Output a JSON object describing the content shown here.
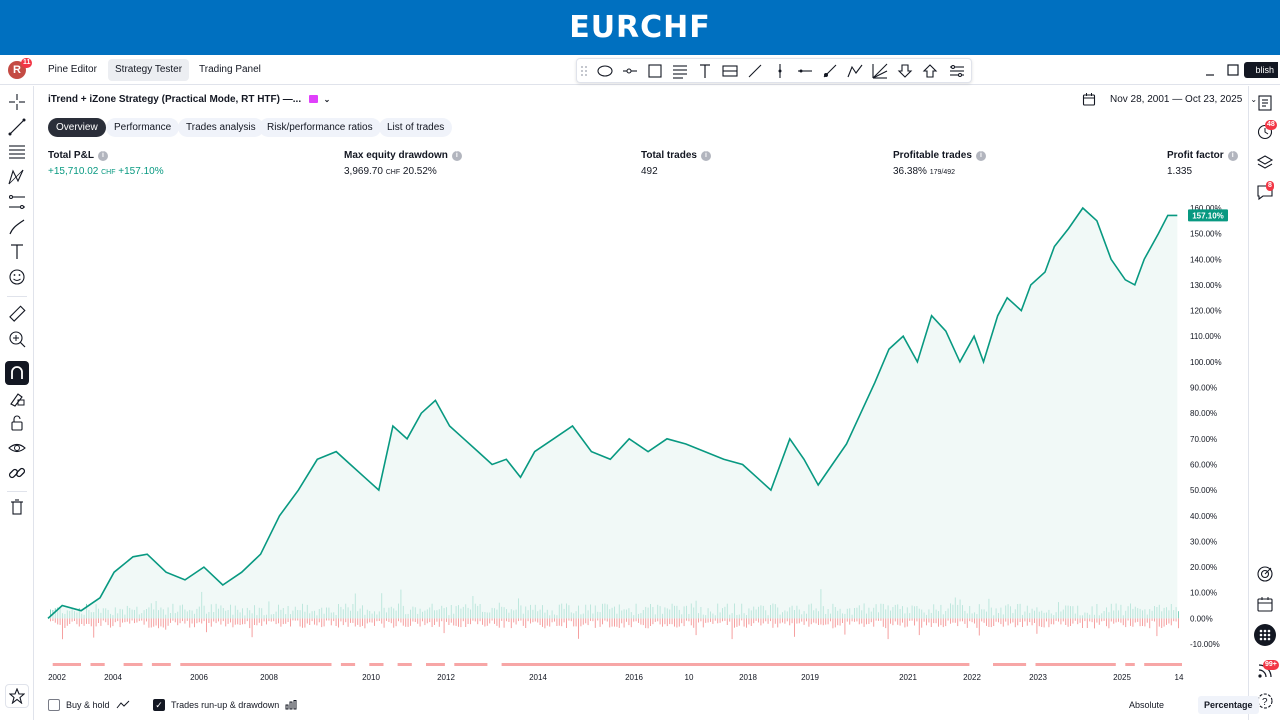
{
  "banner": {
    "title": "EURCHF"
  },
  "topbar": {
    "avatar_letter": "R",
    "avatar_badge": "11",
    "tabs": [
      {
        "label": "Pine Editor"
      },
      {
        "label": "Strategy Tester"
      },
      {
        "label": "Trading Panel"
      }
    ],
    "active_tab": "Strategy Tester",
    "publish_label": "blish"
  },
  "strategy": {
    "title": "iTrend + iZone Strategy (Practical Mode, RT HTF) —...",
    "date_range": "Nov 28, 2001 — Oct 23, 2025"
  },
  "filter_tabs": [
    {
      "label": "Overview"
    },
    {
      "label": "Performance"
    },
    {
      "label": "Trades analysis"
    },
    {
      "label": "Risk/performance ratios"
    },
    {
      "label": "List of trades"
    }
  ],
  "metrics": {
    "total_pnl": {
      "label": "Total P&L",
      "value": "+15,710.02",
      "unit": "CHF",
      "pct": "+157.10%"
    },
    "max_drawdown": {
      "label": "Max equity drawdown",
      "value": "3,969.70",
      "unit": "CHF",
      "pct": "20.52%"
    },
    "total_trades": {
      "label": "Total trades",
      "value": "492"
    },
    "profitable": {
      "label": "Profitable trades",
      "value": "36.38%",
      "sub": "179/492"
    },
    "profit_factor": {
      "label": "Profit factor",
      "value": "1.335"
    }
  },
  "right_badges": {
    "alerts": "48",
    "chat": "8",
    "notifications": "99+"
  },
  "bottom": {
    "buy_hold": "Buy & hold",
    "runup": "Trades run-up & drawdown",
    "absolute": "Absolute",
    "percentage": "Percentage"
  },
  "chart_data": {
    "type": "area",
    "ylim": [
      -10,
      160
    ],
    "y_ticks": [
      "160.00%",
      "150.00%",
      "140.00%",
      "130.00%",
      "120.00%",
      "110.00%",
      "100.00%",
      "90.00%",
      "80.00%",
      "70.00%",
      "60.00%",
      "50.00%",
      "40.00%",
      "30.00%",
      "20.00%",
      "10.00%",
      "0.00%",
      "-10.00%"
    ],
    "x_ticks": [
      "2002",
      "2004",
      "2006",
      "2008",
      "2010",
      "2012",
      "2014",
      "2016",
      "10",
      "2018",
      "2019",
      "2021",
      "2022",
      "2023",
      "2025",
      "14"
    ],
    "last_value_label": "157.10%",
    "series": [
      {
        "x": [
          2001.9,
          2002.2,
          2002.6,
          2003.0,
          2003.3,
          2003.7,
          2004.0,
          2004.4,
          2004.8,
          2005.2,
          2005.6,
          2006.0,
          2006.4,
          2006.8,
          2007.2,
          2007.6,
          2008.0,
          2008.3,
          2008.6,
          2008.9,
          2009.2,
          2009.5,
          2009.8,
          2010.1,
          2010.4,
          2010.7,
          2011.0,
          2011.3,
          2011.6,
          2011.9,
          2012.2,
          2012.6,
          2013.0,
          2013.4,
          2013.8,
          2014.2,
          2014.6,
          2015.0,
          2015.4,
          2015.8,
          2016.2,
          2016.6,
          2016.9,
          2017.2,
          2017.6,
          2017.9,
          2018.2,
          2018.5,
          2018.8,
          2019.1,
          2019.4,
          2019.7,
          2020.0,
          2020.3,
          2020.6,
          2020.9,
          2021.2,
          2021.5,
          2021.7,
          2022.0,
          2022.2,
          2022.5,
          2022.7,
          2023.0,
          2023.2,
          2023.5,
          2023.8,
          2024.1,
          2024.4,
          2024.7,
          2024.9,
          2025.1,
          2025.4,
          2025.6,
          2025.8
        ],
        "values": [
          0,
          5,
          3,
          8,
          18,
          24,
          25,
          18,
          15,
          20,
          13,
          18,
          25,
          40,
          50,
          62,
          65,
          60,
          55,
          50,
          75,
          70,
          80,
          85,
          75,
          70,
          65,
          60,
          62,
          55,
          65,
          70,
          75,
          65,
          62,
          70,
          65,
          70,
          68,
          65,
          62,
          60,
          55,
          50,
          70,
          62,
          52,
          60,
          68,
          80,
          92,
          105,
          110,
          100,
          118,
          112,
          100,
          110,
          100,
          118,
          125,
          120,
          130,
          135,
          145,
          152,
          160,
          155,
          140,
          132,
          130,
          140,
          150,
          157.1,
          157.1
        ],
        "line_color": "#089981"
      }
    ],
    "histogram_colors": {
      "runup": "#7fd1bd",
      "drawdown": "#f5a0a0"
    },
    "drawdown_bar_color": "#f7a6a6"
  }
}
